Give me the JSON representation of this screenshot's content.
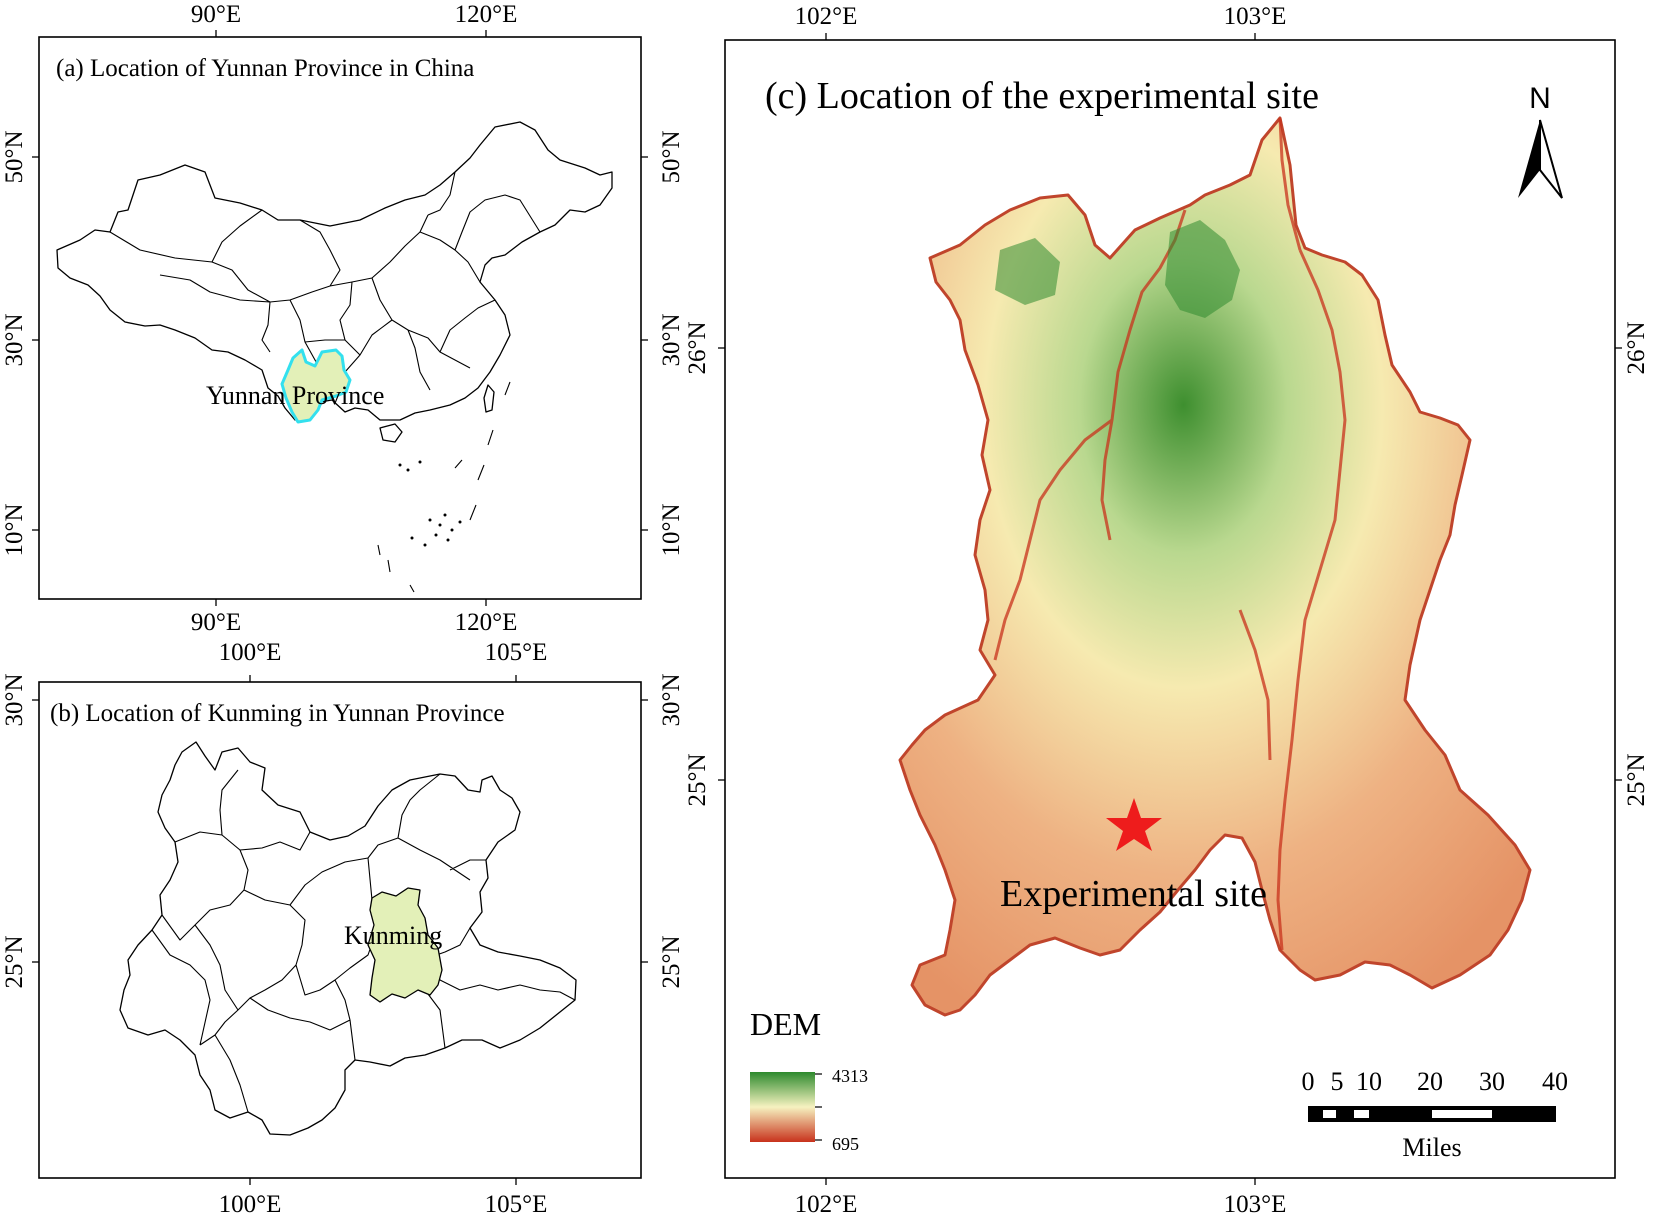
{
  "panel_a": {
    "title": "(a)   Location of Yunnan Province in China",
    "top_ticks": [
      "90°E",
      "120°E"
    ],
    "bottom_ticks": [
      "90°E",
      "120°E"
    ],
    "left_ticks": [
      "50°N",
      "30°N",
      "10°N"
    ],
    "right_ticks": [
      "50°N",
      "30°N",
      "10°N"
    ],
    "highlight_label": "Yunnan Province",
    "highlight_fill": "#e3f0b8",
    "highlight_stroke": "#33e0ee"
  },
  "panel_b": {
    "title": "(b) Location of Kunming in Yunnan Province",
    "top_ticks": [
      "100°E",
      "105°E"
    ],
    "bottom_ticks": [
      "100°E",
      "105°E"
    ],
    "left_ticks": [
      "30°N",
      "25°N"
    ],
    "right_ticks": [
      "30°N",
      "25°N"
    ],
    "highlight_label": "Kunming",
    "highlight_fill": "#e3f0b8"
  },
  "panel_c": {
    "title": "(c)   Location of the experimental site",
    "top_ticks": [
      "102°E",
      "103°E"
    ],
    "bottom_ticks": [
      "102°E",
      "103°E"
    ],
    "right_ticks": [
      "26°N",
      "25°N"
    ],
    "left_ticks": [
      "26°N",
      "25°N"
    ],
    "north_label": "N",
    "site_label": "Experimental site",
    "site_marker_color": "#ee1c1c",
    "legend": {
      "title": "DEM",
      "max": "4313",
      "min": "695",
      "colors": [
        "#2d8a2d",
        "#f6f2c0",
        "#c8321c"
      ]
    },
    "scale_bar": {
      "labels": [
        "0",
        "5",
        "10",
        "20",
        "30",
        "40"
      ],
      "unit": "Miles"
    }
  }
}
